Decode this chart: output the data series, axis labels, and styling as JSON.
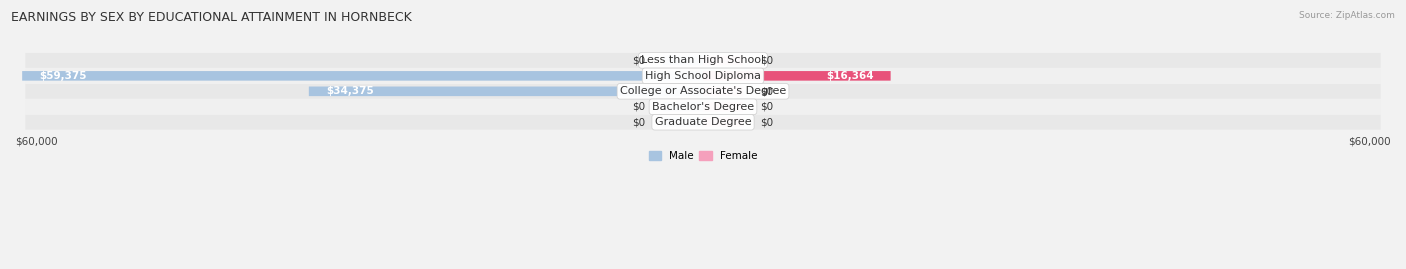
{
  "title": "EARNINGS BY SEX BY EDUCATIONAL ATTAINMENT IN HORNBECK",
  "source": "Source: ZipAtlas.com",
  "categories": [
    "Less than High School",
    "High School Diploma",
    "College or Associate's Degree",
    "Bachelor's Degree",
    "Graduate Degree"
  ],
  "male_values": [
    0,
    59375,
    34375,
    0,
    0
  ],
  "female_values": [
    0,
    16364,
    0,
    0,
    0
  ],
  "male_color": "#a8c4e0",
  "female_color_normal": "#f5a0bc",
  "female_color_large": "#e8527a",
  "male_label": "Male",
  "female_label": "Female",
  "axis_max": 60000,
  "xlabel_left": "$60,000",
  "xlabel_right": "$60,000",
  "bg_color": "#f2f2f2",
  "row_bg_even": "#e8e8e8",
  "row_bg_odd": "#f0f0f0",
  "title_fontsize": 9,
  "source_fontsize": 6.5,
  "label_fontsize": 7.5,
  "bar_value_fontsize": 7.5,
  "category_fontsize": 8,
  "stub_size": 3500
}
